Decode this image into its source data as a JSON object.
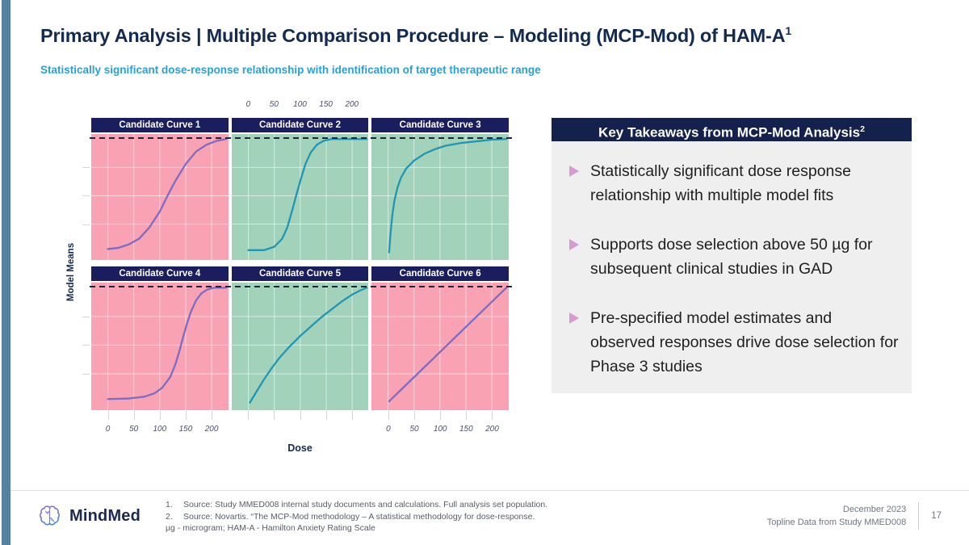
{
  "slide": {
    "title": "Primary Analysis | Multiple Comparison Procedure – Modeling (MCP-Mod) of HAM-A",
    "title_sup": "1",
    "subtitle": "Statistically significant dose-response relationship with identification of target therapeutic range"
  },
  "chart_data": {
    "type": "line",
    "title": "",
    "xlabel": "Dose",
    "ylabel": "Model Means",
    "x_ticks": [
      0,
      50,
      100,
      150,
      200
    ],
    "x_range": [
      -32,
      232
    ],
    "y_range": [
      0,
      1
    ],
    "grid": true,
    "h_gridlines": [
      0.25,
      0.5,
      0.75
    ],
    "asymptote": {
      "level": 1.0,
      "style": "dashed",
      "color": "#1c2540"
    },
    "top_axis_above_facet": 1,
    "bottom_axis_under_facets": [
      0,
      2
    ],
    "facets": [
      {
        "label": "Candidate Curve 1",
        "bg": "#f9a2b3",
        "curve_color": "#7d6cc3",
        "points": [
          [
            0,
            0.03
          ],
          [
            20,
            0.04
          ],
          [
            40,
            0.07
          ],
          [
            60,
            0.12
          ],
          [
            80,
            0.22
          ],
          [
            100,
            0.36
          ],
          [
            115,
            0.5
          ],
          [
            130,
            0.63
          ],
          [
            150,
            0.78
          ],
          [
            170,
            0.89
          ],
          [
            190,
            0.95
          ],
          [
            210,
            0.985
          ],
          [
            228,
            1.0
          ]
        ]
      },
      {
        "label": "Candidate Curve 2",
        "bg": "#a3d2bb",
        "curve_color": "#1f96b4",
        "points": [
          [
            0,
            0.02
          ],
          [
            30,
            0.02
          ],
          [
            50,
            0.05
          ],
          [
            65,
            0.12
          ],
          [
            75,
            0.22
          ],
          [
            85,
            0.38
          ],
          [
            92,
            0.5
          ],
          [
            100,
            0.63
          ],
          [
            110,
            0.78
          ],
          [
            120,
            0.88
          ],
          [
            132,
            0.95
          ],
          [
            145,
            0.985
          ],
          [
            160,
            1.0
          ],
          [
            228,
            1.0
          ]
        ]
      },
      {
        "label": "Candidate Curve 3",
        "bg": "#a3d2bb",
        "curve_color": "#1f96b4",
        "points": [
          [
            2,
            0.0
          ],
          [
            5,
            0.18
          ],
          [
            8,
            0.32
          ],
          [
            12,
            0.45
          ],
          [
            18,
            0.57
          ],
          [
            25,
            0.66
          ],
          [
            35,
            0.74
          ],
          [
            50,
            0.81
          ],
          [
            70,
            0.87
          ],
          [
            90,
            0.91
          ],
          [
            110,
            0.94
          ],
          [
            140,
            0.965
          ],
          [
            170,
            0.98
          ],
          [
            200,
            0.995
          ],
          [
            228,
            1.0
          ]
        ]
      },
      {
        "label": "Candidate Curve 4",
        "bg": "#f9a2b3",
        "curve_color": "#7d6cc3",
        "points": [
          [
            0,
            0.03
          ],
          [
            40,
            0.035
          ],
          [
            70,
            0.05
          ],
          [
            90,
            0.08
          ],
          [
            105,
            0.13
          ],
          [
            120,
            0.22
          ],
          [
            130,
            0.33
          ],
          [
            138,
            0.45
          ],
          [
            145,
            0.57
          ],
          [
            152,
            0.68
          ],
          [
            160,
            0.79
          ],
          [
            170,
            0.89
          ],
          [
            180,
            0.95
          ],
          [
            192,
            0.985
          ],
          [
            205,
            1.0
          ],
          [
            228,
            1.0
          ]
        ]
      },
      {
        "label": "Candidate Curve 5",
        "bg": "#a3d2bb",
        "curve_color": "#1f96b4",
        "points": [
          [
            3,
            0.0
          ],
          [
            15,
            0.09
          ],
          [
            30,
            0.2
          ],
          [
            45,
            0.3
          ],
          [
            60,
            0.39
          ],
          [
            80,
            0.49
          ],
          [
            100,
            0.58
          ],
          [
            120,
            0.66
          ],
          [
            140,
            0.74
          ],
          [
            160,
            0.81
          ],
          [
            180,
            0.88
          ],
          [
            200,
            0.94
          ],
          [
            215,
            0.975
          ],
          [
            228,
            1.0
          ]
        ]
      },
      {
        "label": "Candidate Curve 6",
        "bg": "#f9a2b3",
        "curve_color": "#7d6cc3",
        "points": [
          [
            2,
            0.01
          ],
          [
            228,
            1.0
          ]
        ]
      }
    ]
  },
  "takeaways": {
    "header": "Key Takeaways from MCP-Mod Analysis",
    "header_sup": "2",
    "bullet_color": "#d79ad3",
    "bullets": [
      "Statistically significant dose response relationship with multiple model fits",
      "Supports dose selection above 50 µg for subsequent clinical studies in GAD",
      "Pre-specified model estimates and observed responses drive dose selection for Phase 3 studies"
    ]
  },
  "footer": {
    "brand": "MindMed",
    "footnotes": [
      {
        "num": "1.",
        "text": "Source: Study MMED008 internal study documents and calculations. Full analysis set population."
      },
      {
        "num": "2.",
        "text": "Source: Novartis.  “The MCP-Mod methodology – A statistical methodology for dose-response."
      }
    ],
    "abbreviations": "µg - microgram; HAM-A - Hamilton Anxiety Rating Scale",
    "date": "December 2023",
    "data_line": "Topline Data from Study MMED008",
    "page": "17"
  }
}
